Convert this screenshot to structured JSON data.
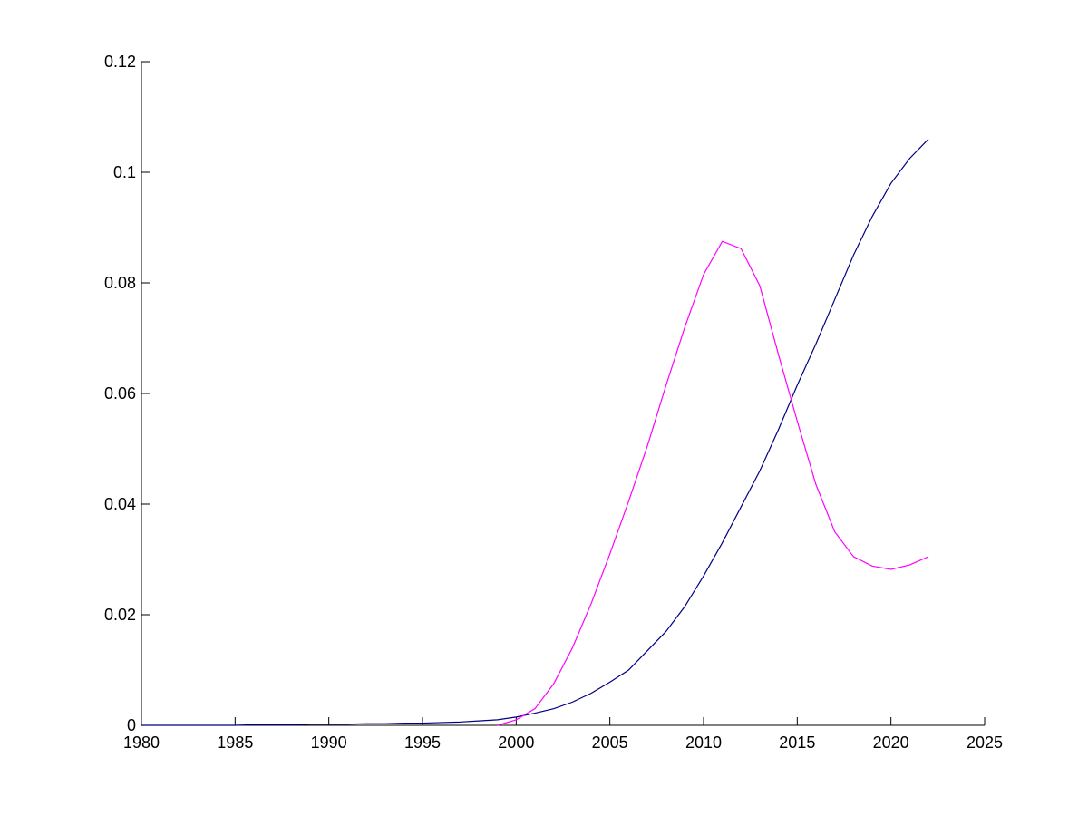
{
  "chart_data": {
    "type": "line",
    "x": [
      1980,
      1981,
      1982,
      1983,
      1984,
      1985,
      1986,
      1987,
      1988,
      1989,
      1990,
      1991,
      1992,
      1993,
      1994,
      1995,
      1996,
      1997,
      1998,
      1999,
      2000,
      2001,
      2002,
      2003,
      2004,
      2005,
      2006,
      2007,
      2008,
      2009,
      2010,
      2011,
      2012,
      2013,
      2014,
      2015,
      2016,
      2017,
      2018,
      2019,
      2020,
      2021,
      2022
    ],
    "series": [
      {
        "color": "#000080",
        "values": [
          0,
          0,
          0,
          0,
          0,
          0,
          0.0001,
          0.0001,
          0.0001,
          0.0002,
          0.0002,
          0.0002,
          0.0003,
          0.0003,
          0.0004,
          0.0004,
          0.0005,
          0.0006,
          0.0008,
          0.001,
          0.0015,
          0.0022,
          0.003,
          0.0042,
          0.0058,
          0.0078,
          0.01,
          0.0135,
          0.017,
          0.0215,
          0.027,
          0.033,
          0.0395,
          0.046,
          0.0535,
          0.0615,
          0.069,
          0.077,
          0.085,
          0.092,
          0.098,
          0.1025,
          0.106
        ]
      },
      {
        "color": "#ff00ff",
        "values": [
          null,
          null,
          null,
          null,
          null,
          null,
          null,
          null,
          null,
          null,
          null,
          null,
          null,
          null,
          null,
          null,
          null,
          null,
          null,
          0,
          0.001,
          0.003,
          0.0075,
          0.014,
          0.022,
          0.031,
          0.0405,
          0.0505,
          0.0615,
          0.072,
          0.0815,
          0.0875,
          0.0862,
          0.0795,
          0.067,
          0.055,
          0.0435,
          0.035,
          0.0305,
          0.0288,
          0.0282,
          0.029,
          0.0305
        ]
      }
    ],
    "xlim": [
      1980,
      2025
    ],
    "xticks": [
      1980,
      1985,
      1990,
      1995,
      2000,
      2005,
      2010,
      2015,
      2020,
      2025
    ],
    "ylim": [
      0,
      0.12
    ],
    "yticks": [
      0,
      0.02,
      0.04,
      0.06,
      0.08,
      0.1,
      0.12
    ]
  }
}
